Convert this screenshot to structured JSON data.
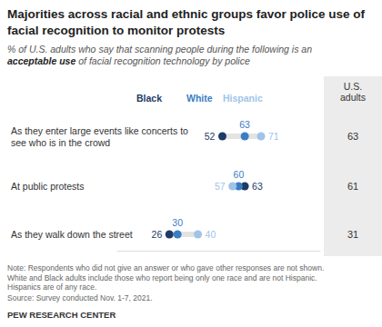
{
  "chart_data": {
    "type": "dot",
    "orientation": "horizontal",
    "title": "Majorities across racial and ethnic groups favor police use of facial recognition to monitor protests",
    "subtitle": [
      "% of U.S. adults who say that scanning people during the following is an",
      "acceptable use",
      " of facial recognition technology by police"
    ],
    "categories": [
      "As they enter large events like concerts to see who is in the crowd",
      "At public protests",
      "As they walk down the street"
    ],
    "series": [
      {
        "name": "Black",
        "color": "#1d3b66",
        "values": [
          52,
          63,
          26
        ]
      },
      {
        "name": "White",
        "color": "#3b7dc4",
        "values": [
          63,
          60,
          30
        ]
      },
      {
        "name": "Hispanic",
        "color": "#9fc4e8",
        "values": [
          71,
          57,
          40
        ]
      }
    ],
    "total": {
      "name": "U.S. adults",
      "values": [
        63,
        61,
        31
      ]
    },
    "xlim": [
      0,
      100
    ],
    "xticks": [],
    "tick_labels": false,
    "data_labels": true,
    "notes": [
      "Note: Respondents who did not give an answer or who gave other responses are not shown.",
      "White and Black adults include those who report being only one race and are not Hispanic.",
      "Hispanics are of any race."
    ],
    "source": "Source: Survey conducted Nov. 1-7, 2021.",
    "credit": "PEW RESEARCH CENTER"
  }
}
